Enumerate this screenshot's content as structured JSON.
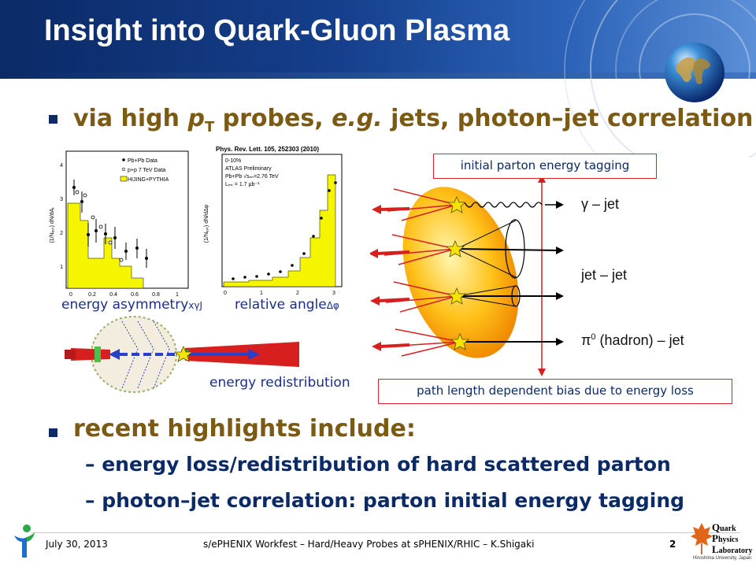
{
  "slide": {
    "title": "Insight into Quark-Gluon Plasma",
    "bullet1": {
      "pre": "via high ",
      "p": "p",
      "sub": "T",
      "mid": " probes, ",
      "eg": "e.g.",
      "post": " jets, photon–jet correlation"
    },
    "plots": {
      "left_label": "energy asymmetry",
      "left_symbol": "xγJ",
      "right_label": "relative angle",
      "right_symbol": "Δφ",
      "journal": "Phys. Rev. Lett. 105, 252303 (2010)",
      "left_legend": [
        "Pb+Pb Data",
        "p+p 7 TeV Data",
        "HIJING+PYTHIA"
      ],
      "right_legend": [
        "0-10%",
        "ATLAS Preliminary",
        "Pb+Pb √sₙₙ=2.76 TeV",
        "Lᵢₙₜ = 1.7 μb⁻¹"
      ],
      "left_ylabel": "(1/Nₑᵥₜ) dN/dAⱼ",
      "right_ylabel": "(1/Nₑᵥₜ) dN/dΔφ",
      "left_yticks": [
        "1",
        "2",
        "3",
        "4"
      ],
      "left_xticks": [
        "0",
        "0.2",
        "0.4",
        "0.6",
        "0.8",
        "1"
      ],
      "right_xticks": [
        "0",
        "1",
        "2",
        "3"
      ]
    },
    "energy_redistribution": "energy redistribution",
    "diagram": {
      "top_box": "initial parton energy tagging",
      "bottom_box": "path length dependent bias due to energy loss",
      "label_gamma": "γ – jet",
      "label_jet": "jet – jet",
      "label_pi_pre": "π",
      "label_pi_sup": "0",
      "label_pi_post": " (hadron) – jet"
    },
    "bullet2": "recent highlights include:",
    "sub1": "–  energy loss/redistribution of hard scattered parton",
    "sub2": "–  photon–jet correlation: parton initial energy tagging"
  },
  "footer": {
    "date": "July 30, 2013",
    "event": "s/ePHENIX Workfest – Hard/Heavy Probes at sPHENIX/RHIC  – K.Shigaki",
    "page": "2",
    "logo_q": "Q",
    "logo_uark": "uark",
    "logo_p": "P",
    "logo_hysics": "hysics",
    "logo_l": "L",
    "logo_aboratory": "aboratory",
    "logo_univ": "Hiroshima University, Japan"
  },
  "colors": {
    "header": "#0b2a66",
    "bullet_gold": "#7b5a14",
    "sub_blue": "#0b2a66",
    "box_red": "#d8262c"
  }
}
